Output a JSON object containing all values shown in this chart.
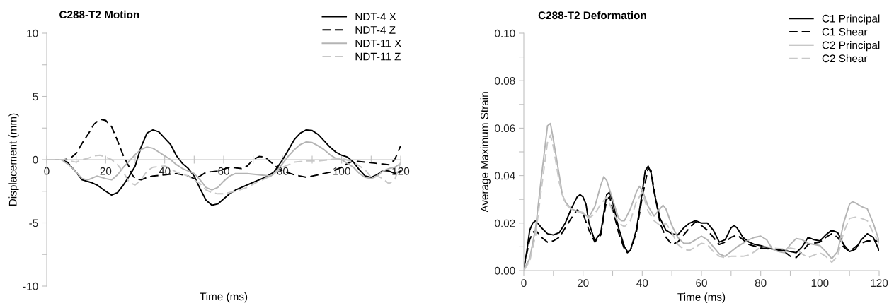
{
  "chart_data": [
    {
      "type": "line",
      "title": "C288-T2 Motion",
      "xlabel": "Time (ms)",
      "ylabel": "Displacement (mm)",
      "legend": "top right",
      "xlim": [
        0,
        120
      ],
      "ylim": [
        -10,
        10
      ],
      "xticks": [
        0,
        {
          "value": 10,
          "label": null
        },
        20,
        {
          "value": 30,
          "label": null
        },
        40,
        {
          "value": 50,
          "label": null
        },
        60,
        {
          "value": 70,
          "label": null
        },
        80,
        {
          "value": 90,
          "label": null
        },
        100,
        {
          "value": 110,
          "label": null
        },
        120
      ],
      "yticks": [
        {
          "value": -10,
          "label": "-10"
        },
        {
          "value": -7.5,
          "label": null
        },
        {
          "value": -5,
          "label": "-5"
        },
        {
          "value": -2.5,
          "label": null
        },
        0,
        {
          "value": 2.5,
          "label": null
        },
        5,
        {
          "value": 7.5,
          "label": null
        },
        10
      ],
      "series": [
        {
          "name": "NDT-4 X",
          "color": "#000000",
          "line_style": "solid",
          "x": [
            0,
            5,
            7,
            10,
            12,
            15,
            17,
            20,
            22,
            24,
            26,
            28,
            30,
            32,
            34,
            36,
            38,
            40,
            42,
            44,
            46,
            48,
            50,
            52,
            54,
            56,
            58,
            60,
            62,
            64,
            66,
            70,
            74,
            77,
            80,
            82,
            84,
            86,
            88,
            90,
            92,
            94,
            96,
            98,
            100,
            102,
            104,
            106,
            108,
            110,
            112,
            114,
            116,
            118,
            120
          ],
          "values": [
            0,
            0,
            -0.2,
            -1.0,
            -1.6,
            -1.8,
            -2.0,
            -2.5,
            -2.8,
            -2.6,
            -2.0,
            -1.3,
            -0.5,
            1.0,
            2.1,
            2.35,
            2.2,
            1.7,
            1.2,
            0.3,
            -0.3,
            -0.7,
            -1.3,
            -2.3,
            -3.2,
            -3.6,
            -3.5,
            -3.1,
            -2.7,
            -2.4,
            -2.2,
            -1.8,
            -1.4,
            -1.0,
            0,
            0.8,
            1.6,
            2.1,
            2.35,
            2.3,
            2.0,
            1.5,
            1.0,
            0.6,
            0.35,
            0.2,
            -0.2,
            -0.8,
            -1.3,
            -1.4,
            -1.2,
            -0.85,
            -0.9,
            -1.1,
            -0.9
          ]
        },
        {
          "name": "NDT-4 Z",
          "color": "#000000",
          "line_style": "dashed",
          "x": [
            0,
            6,
            8,
            10,
            12,
            14,
            16,
            18,
            20,
            22,
            24,
            26,
            28,
            29,
            30,
            32,
            34,
            36,
            40,
            44,
            48,
            50,
            52,
            54,
            58,
            62,
            66,
            68,
            70,
            72,
            74,
            76,
            78,
            80,
            84,
            88,
            92,
            96,
            100,
            102,
            104,
            108,
            112,
            116,
            118,
            120
          ],
          "values": [
            0,
            0,
            0.1,
            0.5,
            1.3,
            2.0,
            2.8,
            3.2,
            3.1,
            2.6,
            1.5,
            0.3,
            -0.6,
            -1.2,
            -1.5,
            -1.6,
            -1.4,
            -1.3,
            -1.2,
            -1.1,
            -1.3,
            -1.5,
            -1.3,
            -1.0,
            -0.9,
            -0.6,
            -0.7,
            -0.5,
            0.0,
            0.25,
            0.2,
            -0.2,
            -0.6,
            -0.9,
            -1.2,
            -1.4,
            -1.2,
            -1.0,
            -0.6,
            -0.3,
            -0.1,
            -0.2,
            -0.3,
            -0.4,
            0.0,
            1.1
          ]
        },
        {
          "name": "NDT-11 X",
          "color": "#b4b4b4",
          "line_style": "solid",
          "x": [
            0,
            5,
            8,
            10,
            12,
            14,
            17,
            20,
            22,
            24,
            26,
            28,
            30,
            32,
            34,
            36,
            38,
            40,
            42,
            44,
            46,
            50,
            52,
            54,
            56,
            58,
            60,
            62,
            64,
            68,
            72,
            76,
            78,
            80,
            82,
            84,
            86,
            88,
            90,
            92,
            94,
            96,
            98,
            100,
            102,
            104,
            106,
            108,
            110,
            112,
            114,
            116,
            118,
            120
          ],
          "values": [
            0,
            0,
            -0.5,
            -1.0,
            -1.5,
            -1.6,
            -1.3,
            -1.5,
            -1.6,
            -1.2,
            -0.6,
            -0.1,
            0.4,
            0.8,
            1.0,
            0.9,
            0.6,
            0.3,
            0.0,
            -0.4,
            -0.7,
            -1.1,
            -1.6,
            -2.2,
            -2.4,
            -2.2,
            -1.7,
            -1.3,
            -1.1,
            -1.1,
            -1.2,
            -1.3,
            -0.9,
            -0.3,
            0.3,
            0.8,
            1.2,
            1.4,
            1.35,
            1.1,
            0.8,
            0.4,
            0.1,
            0.0,
            -0.3,
            -0.6,
            -1.1,
            -1.4,
            -1.5,
            -1.3,
            -0.9,
            -0.7,
            -0.6,
            -0.3
          ]
        },
        {
          "name": "NDT-11 Z",
          "color": "#c8c8c8",
          "line_style": "dashed",
          "x": [
            0,
            6,
            8,
            10,
            12,
            14,
            16,
            18,
            20,
            22,
            24,
            26,
            28,
            30,
            32,
            34,
            36,
            40,
            42,
            44,
            48,
            52,
            54,
            56,
            58,
            60,
            64,
            68,
            72,
            76,
            80,
            84,
            88,
            92,
            96,
            100,
            104,
            108,
            110,
            112,
            114,
            116,
            118,
            120
          ],
          "values": [
            0,
            0,
            -0.1,
            -0.2,
            0.0,
            0.1,
            0.3,
            0.35,
            0.2,
            0.0,
            -0.4,
            -1.0,
            -1.8,
            -2.0,
            -1.6,
            -0.9,
            -0.6,
            -0.5,
            -0.7,
            -1.0,
            -1.3,
            -1.9,
            -2.4,
            -2.6,
            -2.7,
            -2.7,
            -2.5,
            -2.2,
            -1.7,
            -1.3,
            -0.6,
            -0.2,
            -0.1,
            -0.1,
            0.0,
            0.1,
            -0.2,
            -0.8,
            -1.4,
            -1.3,
            -1.5,
            -1.9,
            -1.6,
            -0.2
          ]
        }
      ]
    },
    {
      "type": "line",
      "title": "C288-T2 Deformation",
      "xlabel": "Time (ms)",
      "ylabel": "Average Maximum Strain",
      "legend": "top right",
      "xlim": [
        0,
        120
      ],
      "ylim": [
        0,
        0.1
      ],
      "xticks": [
        0,
        {
          "value": 10,
          "label": null
        },
        20,
        {
          "value": 30,
          "label": null
        },
        40,
        {
          "value": 50,
          "label": null
        },
        60,
        {
          "value": 70,
          "label": null
        },
        80,
        {
          "value": 90,
          "label": null
        },
        100,
        {
          "value": 110,
          "label": null
        },
        120
      ],
      "yticks": [
        {
          "value": 0,
          "label": "0.00"
        },
        {
          "value": 0.01,
          "label": null
        },
        {
          "value": 0.02,
          "label": "0.02"
        },
        {
          "value": 0.03,
          "label": null
        },
        {
          "value": 0.04,
          "label": "0.04"
        },
        {
          "value": 0.05,
          "label": null
        },
        {
          "value": 0.06,
          "label": "0.06"
        },
        {
          "value": 0.07,
          "label": null
        },
        {
          "value": 0.08,
          "label": "0.08"
        },
        {
          "value": 0.09,
          "label": null
        },
        {
          "value": 0.1,
          "label": "0.10"
        }
      ],
      "series": [
        {
          "name": "C1 Principal",
          "color": "#000000",
          "line_style": "solid",
          "x": [
            0,
            1,
            2,
            3,
            4,
            6,
            8,
            10,
            12,
            14,
            16,
            18,
            19,
            20,
            21,
            22,
            24,
            26,
            28,
            29,
            30,
            32,
            34,
            35,
            36,
            38,
            40,
            41,
            42,
            43,
            44,
            46,
            48,
            50,
            52,
            54,
            56,
            58,
            60,
            62,
            64,
            66,
            68,
            70,
            71,
            72,
            74,
            76,
            78,
            80,
            84,
            88,
            90,
            92,
            94,
            96,
            98,
            100,
            102,
            104,
            106,
            108,
            110,
            112,
            114,
            116,
            118,
            120
          ],
          "values": [
            0.001,
            0.008,
            0.017,
            0.02,
            0.021,
            0.018,
            0.0155,
            0.015,
            0.016,
            0.02,
            0.026,
            0.031,
            0.032,
            0.031,
            0.028,
            0.02,
            0.0125,
            0.016,
            0.032,
            0.033,
            0.029,
            0.018,
            0.01,
            0.008,
            0.0085,
            0.017,
            0.033,
            0.042,
            0.044,
            0.041,
            0.033,
            0.022,
            0.017,
            0.0155,
            0.015,
            0.018,
            0.02,
            0.021,
            0.02,
            0.02,
            0.017,
            0.012,
            0.013,
            0.018,
            0.019,
            0.018,
            0.014,
            0.012,
            0.011,
            0.0105,
            0.009,
            0.0085,
            0.008,
            0.0075,
            0.01,
            0.014,
            0.013,
            0.0125,
            0.015,
            0.017,
            0.016,
            0.011,
            0.008,
            0.009,
            0.013,
            0.0155,
            0.014,
            0.0085
          ]
        },
        {
          "name": "C1 Shear",
          "color": "#000000",
          "line_style": "dashed",
          "x": [
            0,
            2,
            3,
            4,
            6,
            8,
            10,
            12,
            14,
            16,
            18,
            20,
            22,
            24,
            26,
            28,
            29,
            30,
            32,
            34,
            35,
            36,
            38,
            40,
            42,
            43,
            44,
            46,
            48,
            50,
            52,
            54,
            56,
            58,
            60,
            62,
            64,
            66,
            68,
            70,
            72,
            74,
            76,
            80,
            84,
            88,
            90,
            92,
            94,
            96,
            98,
            100,
            102,
            104,
            106,
            108,
            110,
            112,
            114,
            116,
            120
          ],
          "values": [
            0.001,
            0.013,
            0.016,
            0.017,
            0.014,
            0.012,
            0.0125,
            0.014,
            0.018,
            0.022,
            0.0255,
            0.024,
            0.017,
            0.012,
            0.015,
            0.03,
            0.031,
            0.026,
            0.016,
            0.009,
            0.0075,
            0.0085,
            0.016,
            0.031,
            0.043,
            0.042,
            0.034,
            0.02,
            0.014,
            0.011,
            0.012,
            0.015,
            0.018,
            0.0205,
            0.019,
            0.017,
            0.014,
            0.011,
            0.012,
            0.014,
            0.015,
            0.013,
            0.011,
            0.0095,
            0.009,
            0.008,
            0.006,
            0.0055,
            0.008,
            0.011,
            0.0115,
            0.012,
            0.014,
            0.0155,
            0.014,
            0.01,
            0.008,
            0.01,
            0.0115,
            0.0125,
            0.0125
          ]
        },
        {
          "name": "C2 Principal",
          "color": "#b4b4b4",
          "line_style": "solid",
          "x": [
            0,
            2,
            4,
            6,
            8,
            9,
            10,
            12,
            13,
            14,
            16,
            18,
            20,
            22,
            24,
            26,
            27,
            28,
            30,
            32,
            33,
            34,
            36,
            38,
            39,
            40,
            42,
            44,
            46,
            47,
            48,
            50,
            52,
            54,
            56,
            58,
            60,
            62,
            64,
            66,
            68,
            70,
            72,
            74,
            76,
            78,
            80,
            82,
            84,
            86,
            88,
            90,
            92,
            94,
            96,
            98,
            100,
            102,
            104,
            106,
            108,
            110,
            111,
            112,
            114,
            116,
            118,
            120
          ],
          "values": [
            0.0005,
            0.005,
            0.018,
            0.04,
            0.061,
            0.062,
            0.055,
            0.04,
            0.032,
            0.029,
            0.026,
            0.025,
            0.024,
            0.0225,
            0.027,
            0.036,
            0.0395,
            0.038,
            0.03,
            0.022,
            0.021,
            0.021,
            0.026,
            0.033,
            0.0355,
            0.034,
            0.027,
            0.023,
            0.026,
            0.0275,
            0.026,
            0.019,
            0.014,
            0.0115,
            0.0115,
            0.013,
            0.0145,
            0.013,
            0.01,
            0.007,
            0.006,
            0.008,
            0.01,
            0.0115,
            0.013,
            0.014,
            0.0145,
            0.013,
            0.009,
            0.008,
            0.0075,
            0.011,
            0.0135,
            0.013,
            0.0115,
            0.011,
            0.0105,
            0.008,
            0.005,
            0.008,
            0.02,
            0.028,
            0.029,
            0.0285,
            0.027,
            0.026,
            0.02,
            0.0125
          ]
        },
        {
          "name": "C2 Shear",
          "color": "#c8c8c8",
          "line_style": "dashed",
          "x": [
            0,
            2,
            4,
            6,
            8,
            9,
            10,
            12,
            14,
            16,
            18,
            20,
            22,
            24,
            26,
            28,
            30,
            32,
            34,
            36,
            38,
            40,
            42,
            44,
            46,
            48,
            50,
            52,
            54,
            56,
            58,
            60,
            62,
            64,
            66,
            68,
            70,
            74,
            76,
            78,
            80,
            82,
            84,
            88,
            90,
            92,
            94,
            96,
            98,
            100,
            102,
            104,
            106,
            108,
            110,
            112,
            114,
            116,
            118,
            120
          ],
          "values": [
            0.0,
            0.004,
            0.015,
            0.035,
            0.054,
            0.057,
            0.052,
            0.037,
            0.028,
            0.026,
            0.025,
            0.0245,
            0.022,
            0.024,
            0.028,
            0.031,
            0.025,
            0.02,
            0.0185,
            0.021,
            0.029,
            0.033,
            0.025,
            0.021,
            0.019,
            0.02,
            0.016,
            0.011,
            0.009,
            0.0085,
            0.01,
            0.0115,
            0.011,
            0.008,
            0.006,
            0.0055,
            0.006,
            0.006,
            0.0065,
            0.008,
            0.01,
            0.01,
            0.0095,
            0.009,
            0.0095,
            0.009,
            0.007,
            0.0055,
            0.0065,
            0.0075,
            0.006,
            0.0035,
            0.006,
            0.016,
            0.022,
            0.0225,
            0.022,
            0.021,
            0.016,
            0.0115
          ]
        }
      ]
    }
  ]
}
